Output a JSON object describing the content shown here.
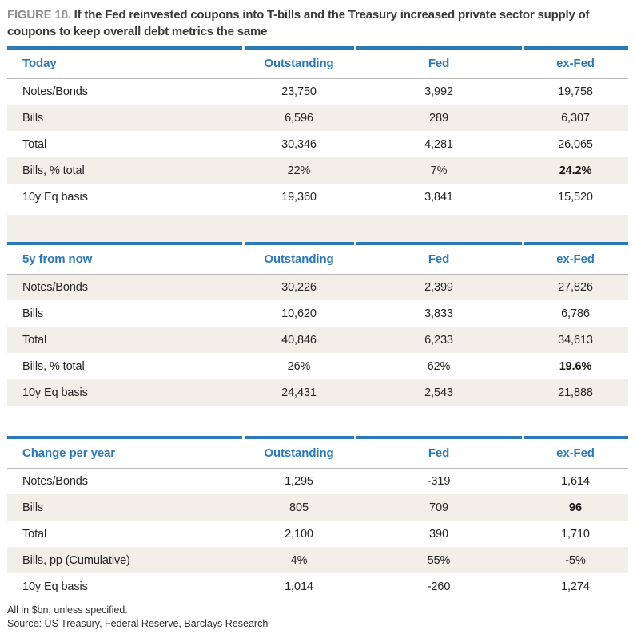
{
  "figure": {
    "label": "FIGURE 18.",
    "title": "If the Fed reinvested coupons into T-bills and the Treasury increased private sector supply of coupons to keep overall debt metrics the same"
  },
  "tables": [
    {
      "title": "Today",
      "columns": [
        "Outstanding",
        "Fed",
        "ex-Fed"
      ],
      "rows": [
        {
          "label": "Notes/Bonds",
          "values": [
            "23,750",
            "3,992",
            "19,758"
          ]
        },
        {
          "label": "Bills",
          "values": [
            "6,596",
            "289",
            "6,307"
          ]
        },
        {
          "label": "Total",
          "values": [
            "30,346",
            "4,281",
            "26,065"
          ]
        },
        {
          "label": "Bills, % total",
          "values": [
            "22%",
            "7%",
            "24.2%"
          ]
        },
        {
          "label": "10y Eq basis",
          "values": [
            "19,360",
            "3,841",
            "15,520"
          ]
        }
      ]
    },
    {
      "title": "5y from now",
      "columns": [
        "Outstanding",
        "Fed",
        "ex-Fed"
      ],
      "rows": [
        {
          "label": "Notes/Bonds",
          "values": [
            "30,226",
            "2,399",
            "27,826"
          ]
        },
        {
          "label": "Bills",
          "values": [
            "10,620",
            "3,833",
            "6,786"
          ]
        },
        {
          "label": "Total",
          "values": [
            "40,846",
            "6,233",
            "34,613"
          ]
        },
        {
          "label": "Bills, % total",
          "values": [
            "26%",
            "62%",
            "19.6%"
          ]
        },
        {
          "label": "10y Eq basis",
          "values": [
            "24,431",
            "2,543",
            "21,888"
          ]
        }
      ]
    },
    {
      "title": "Change per year",
      "columns": [
        "Outstanding",
        "Fed",
        "ex-Fed"
      ],
      "rows": [
        {
          "label": "Notes/Bonds",
          "values": [
            "1,295",
            "-319",
            "1,614"
          ]
        },
        {
          "label": "Bills",
          "values": [
            "805",
            "709",
            "96"
          ]
        },
        {
          "label": "Total",
          "values": [
            "2,100",
            "390",
            "1,710"
          ]
        },
        {
          "label": "Bills, pp (Cumulative)",
          "values": [
            "4%",
            "55%",
            "-5%"
          ]
        },
        {
          "label": "10y Eq basis",
          "values": [
            "1,014",
            "-260",
            "1,274"
          ]
        }
      ]
    }
  ],
  "notes": {
    "unit_note": "All in $bn, unless specified.",
    "source_note": "Source: US Treasury, Federal Reserve, Barclays Research"
  },
  "colors": {
    "accent_blue": "#2c79b6",
    "row_beige": "#f2efe8",
    "figure_label_gray": "#8f8f8f"
  }
}
